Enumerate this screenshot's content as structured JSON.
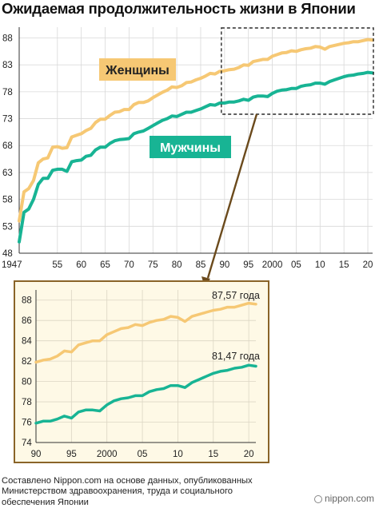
{
  "page": {
    "title": "Ожидаемая продолжительность жизни в Японии",
    "source": "Составлено Nippon.com на основе данных, опубликованных Министерством здравоохранения, труда и социального обеспечения Японии",
    "brand": "nippon.com"
  },
  "chart_data": [
    {
      "type": "line",
      "x_tick_labels": [
        "1947",
        "55",
        "60",
        "65",
        "70",
        "75",
        "80",
        "85",
        "90",
        "95",
        "2000",
        "05",
        "10",
        "15",
        "20"
      ],
      "x_tick_values": [
        1947,
        1955,
        1960,
        1965,
        1970,
        1975,
        1980,
        1985,
        1990,
        1995,
        2000,
        2005,
        2010,
        2015,
        2020
      ],
      "xlim": [
        1947,
        2021
      ],
      "ylim": [
        48,
        90
      ],
      "y_ticks": [
        48,
        53,
        58,
        63,
        68,
        73,
        78,
        83,
        88
      ],
      "grid": true,
      "series": [
        {
          "name": "Женщины",
          "color": "#f6c874",
          "points": [
            [
              1947,
              54.0
            ],
            [
              1948,
              59.4
            ],
            [
              1949,
              60.0
            ],
            [
              1950,
              61.5
            ],
            [
              1951,
              64.8
            ],
            [
              1952,
              65.5
            ],
            [
              1953,
              65.7
            ],
            [
              1954,
              67.7
            ],
            [
              1955,
              67.8
            ],
            [
              1956,
              67.5
            ],
            [
              1957,
              67.6
            ],
            [
              1958,
              69.6
            ],
            [
              1959,
              69.9
            ],
            [
              1960,
              70.2
            ],
            [
              1961,
              70.8
            ],
            [
              1962,
              71.2
            ],
            [
              1963,
              72.3
            ],
            [
              1964,
              72.9
            ],
            [
              1965,
              72.9
            ],
            [
              1966,
              73.6
            ],
            [
              1967,
              74.2
            ],
            [
              1968,
              74.3
            ],
            [
              1969,
              74.7
            ],
            [
              1970,
              74.7
            ],
            [
              1971,
              75.6
            ],
            [
              1972,
              76.0
            ],
            [
              1973,
              76.0
            ],
            [
              1974,
              76.3
            ],
            [
              1975,
              76.9
            ],
            [
              1976,
              77.4
            ],
            [
              1977,
              77.9
            ],
            [
              1978,
              78.3
            ],
            [
              1979,
              78.9
            ],
            [
              1980,
              78.8
            ],
            [
              1981,
              79.1
            ],
            [
              1982,
              79.7
            ],
            [
              1983,
              79.8
            ],
            [
              1984,
              80.2
            ],
            [
              1985,
              80.5
            ],
            [
              1986,
              80.9
            ],
            [
              1987,
              81.4
            ],
            [
              1988,
              81.3
            ],
            [
              1989,
              81.8
            ],
            [
              1990,
              81.9
            ],
            [
              1991,
              82.1
            ],
            [
              1992,
              82.2
            ],
            [
              1993,
              82.5
            ],
            [
              1994,
              83.0
            ],
            [
              1995,
              82.9
            ],
            [
              1996,
              83.6
            ],
            [
              1997,
              83.8
            ],
            [
              1998,
              84.0
            ],
            [
              1999,
              84.0
            ],
            [
              2000,
              84.6
            ],
            [
              2001,
              84.9
            ],
            [
              2002,
              85.2
            ],
            [
              2003,
              85.3
            ],
            [
              2004,
              85.6
            ],
            [
              2005,
              85.5
            ],
            [
              2006,
              85.8
            ],
            [
              2007,
              86.0
            ],
            [
              2008,
              86.1
            ],
            [
              2009,
              86.4
            ],
            [
              2010,
              86.3
            ],
            [
              2011,
              85.9
            ],
            [
              2012,
              86.4
            ],
            [
              2013,
              86.6
            ],
            [
              2014,
              86.8
            ],
            [
              2015,
              87.0
            ],
            [
              2016,
              87.1
            ],
            [
              2017,
              87.3
            ],
            [
              2018,
              87.3
            ],
            [
              2019,
              87.5
            ],
            [
              2020,
              87.7
            ],
            [
              2021,
              87.6
            ]
          ]
        },
        {
          "name": "Мужчины",
          "color": "#18b494",
          "points": [
            [
              1947,
              50.1
            ],
            [
              1948,
              55.6
            ],
            [
              1949,
              56.2
            ],
            [
              1950,
              58.0
            ],
            [
              1951,
              60.8
            ],
            [
              1952,
              61.9
            ],
            [
              1953,
              61.9
            ],
            [
              1954,
              63.4
            ],
            [
              1955,
              63.6
            ],
            [
              1956,
              63.6
            ],
            [
              1957,
              63.2
            ],
            [
              1958,
              65.0
            ],
            [
              1959,
              65.2
            ],
            [
              1960,
              65.3
            ],
            [
              1961,
              66.0
            ],
            [
              1962,
              66.2
            ],
            [
              1963,
              67.2
            ],
            [
              1964,
              67.7
            ],
            [
              1965,
              67.7
            ],
            [
              1966,
              68.4
            ],
            [
              1967,
              68.9
            ],
            [
              1968,
              69.1
            ],
            [
              1969,
              69.2
            ],
            [
              1970,
              69.3
            ],
            [
              1971,
              70.2
            ],
            [
              1972,
              70.5
            ],
            [
              1973,
              70.7
            ],
            [
              1974,
              71.2
            ],
            [
              1975,
              71.7
            ],
            [
              1976,
              72.2
            ],
            [
              1977,
              72.7
            ],
            [
              1978,
              73.0
            ],
            [
              1979,
              73.5
            ],
            [
              1980,
              73.4
            ],
            [
              1981,
              73.8
            ],
            [
              1982,
              74.2
            ],
            [
              1983,
              74.2
            ],
            [
              1984,
              74.5
            ],
            [
              1985,
              74.8
            ],
            [
              1986,
              75.2
            ],
            [
              1987,
              75.6
            ],
            [
              1988,
              75.5
            ],
            [
              1989,
              75.9
            ],
            [
              1990,
              75.9
            ],
            [
              1991,
              76.1
            ],
            [
              1992,
              76.1
            ],
            [
              1993,
              76.3
            ],
            [
              1994,
              76.6
            ],
            [
              1995,
              76.4
            ],
            [
              1996,
              77.0
            ],
            [
              1997,
              77.2
            ],
            [
              1998,
              77.2
            ],
            [
              1999,
              77.1
            ],
            [
              2000,
              77.7
            ],
            [
              2001,
              78.1
            ],
            [
              2002,
              78.3
            ],
            [
              2003,
              78.4
            ],
            [
              2004,
              78.6
            ],
            [
              2005,
              78.6
            ],
            [
              2006,
              79.0
            ],
            [
              2007,
              79.2
            ],
            [
              2008,
              79.3
            ],
            [
              2009,
              79.6
            ],
            [
              2010,
              79.6
            ],
            [
              2011,
              79.4
            ],
            [
              2012,
              79.9
            ],
            [
              2013,
              80.2
            ],
            [
              2014,
              80.5
            ],
            [
              2015,
              80.8
            ],
            [
              2016,
              81.0
            ],
            [
              2017,
              81.1
            ],
            [
              2018,
              81.3
            ],
            [
              2019,
              81.4
            ],
            [
              2020,
              81.6
            ],
            [
              2021,
              81.5
            ]
          ]
        }
      ],
      "labels": {
        "women": "Женщины",
        "men": "Мужчины"
      }
    },
    {
      "type": "line",
      "x_tick_labels": [
        "90",
        "95",
        "2000",
        "05",
        "10",
        "15",
        "20"
      ],
      "x_tick_values": [
        1990,
        1995,
        2000,
        2005,
        2010,
        2015,
        2020
      ],
      "xlim": [
        1990,
        2021
      ],
      "ylim": [
        74,
        89
      ],
      "y_ticks": [
        74,
        76,
        78,
        80,
        82,
        84,
        86,
        88
      ],
      "grid": true,
      "series": [
        {
          "name": "Женщины",
          "color": "#f6c874",
          "from_year": 1990
        },
        {
          "name": "Мужчины",
          "color": "#18b494",
          "from_year": 1990
        }
      ],
      "annotations": [
        {
          "text": "87,57 года",
          "series": "Женщины"
        },
        {
          "text": "81,47 года",
          "series": "Мужчины"
        }
      ]
    }
  ]
}
